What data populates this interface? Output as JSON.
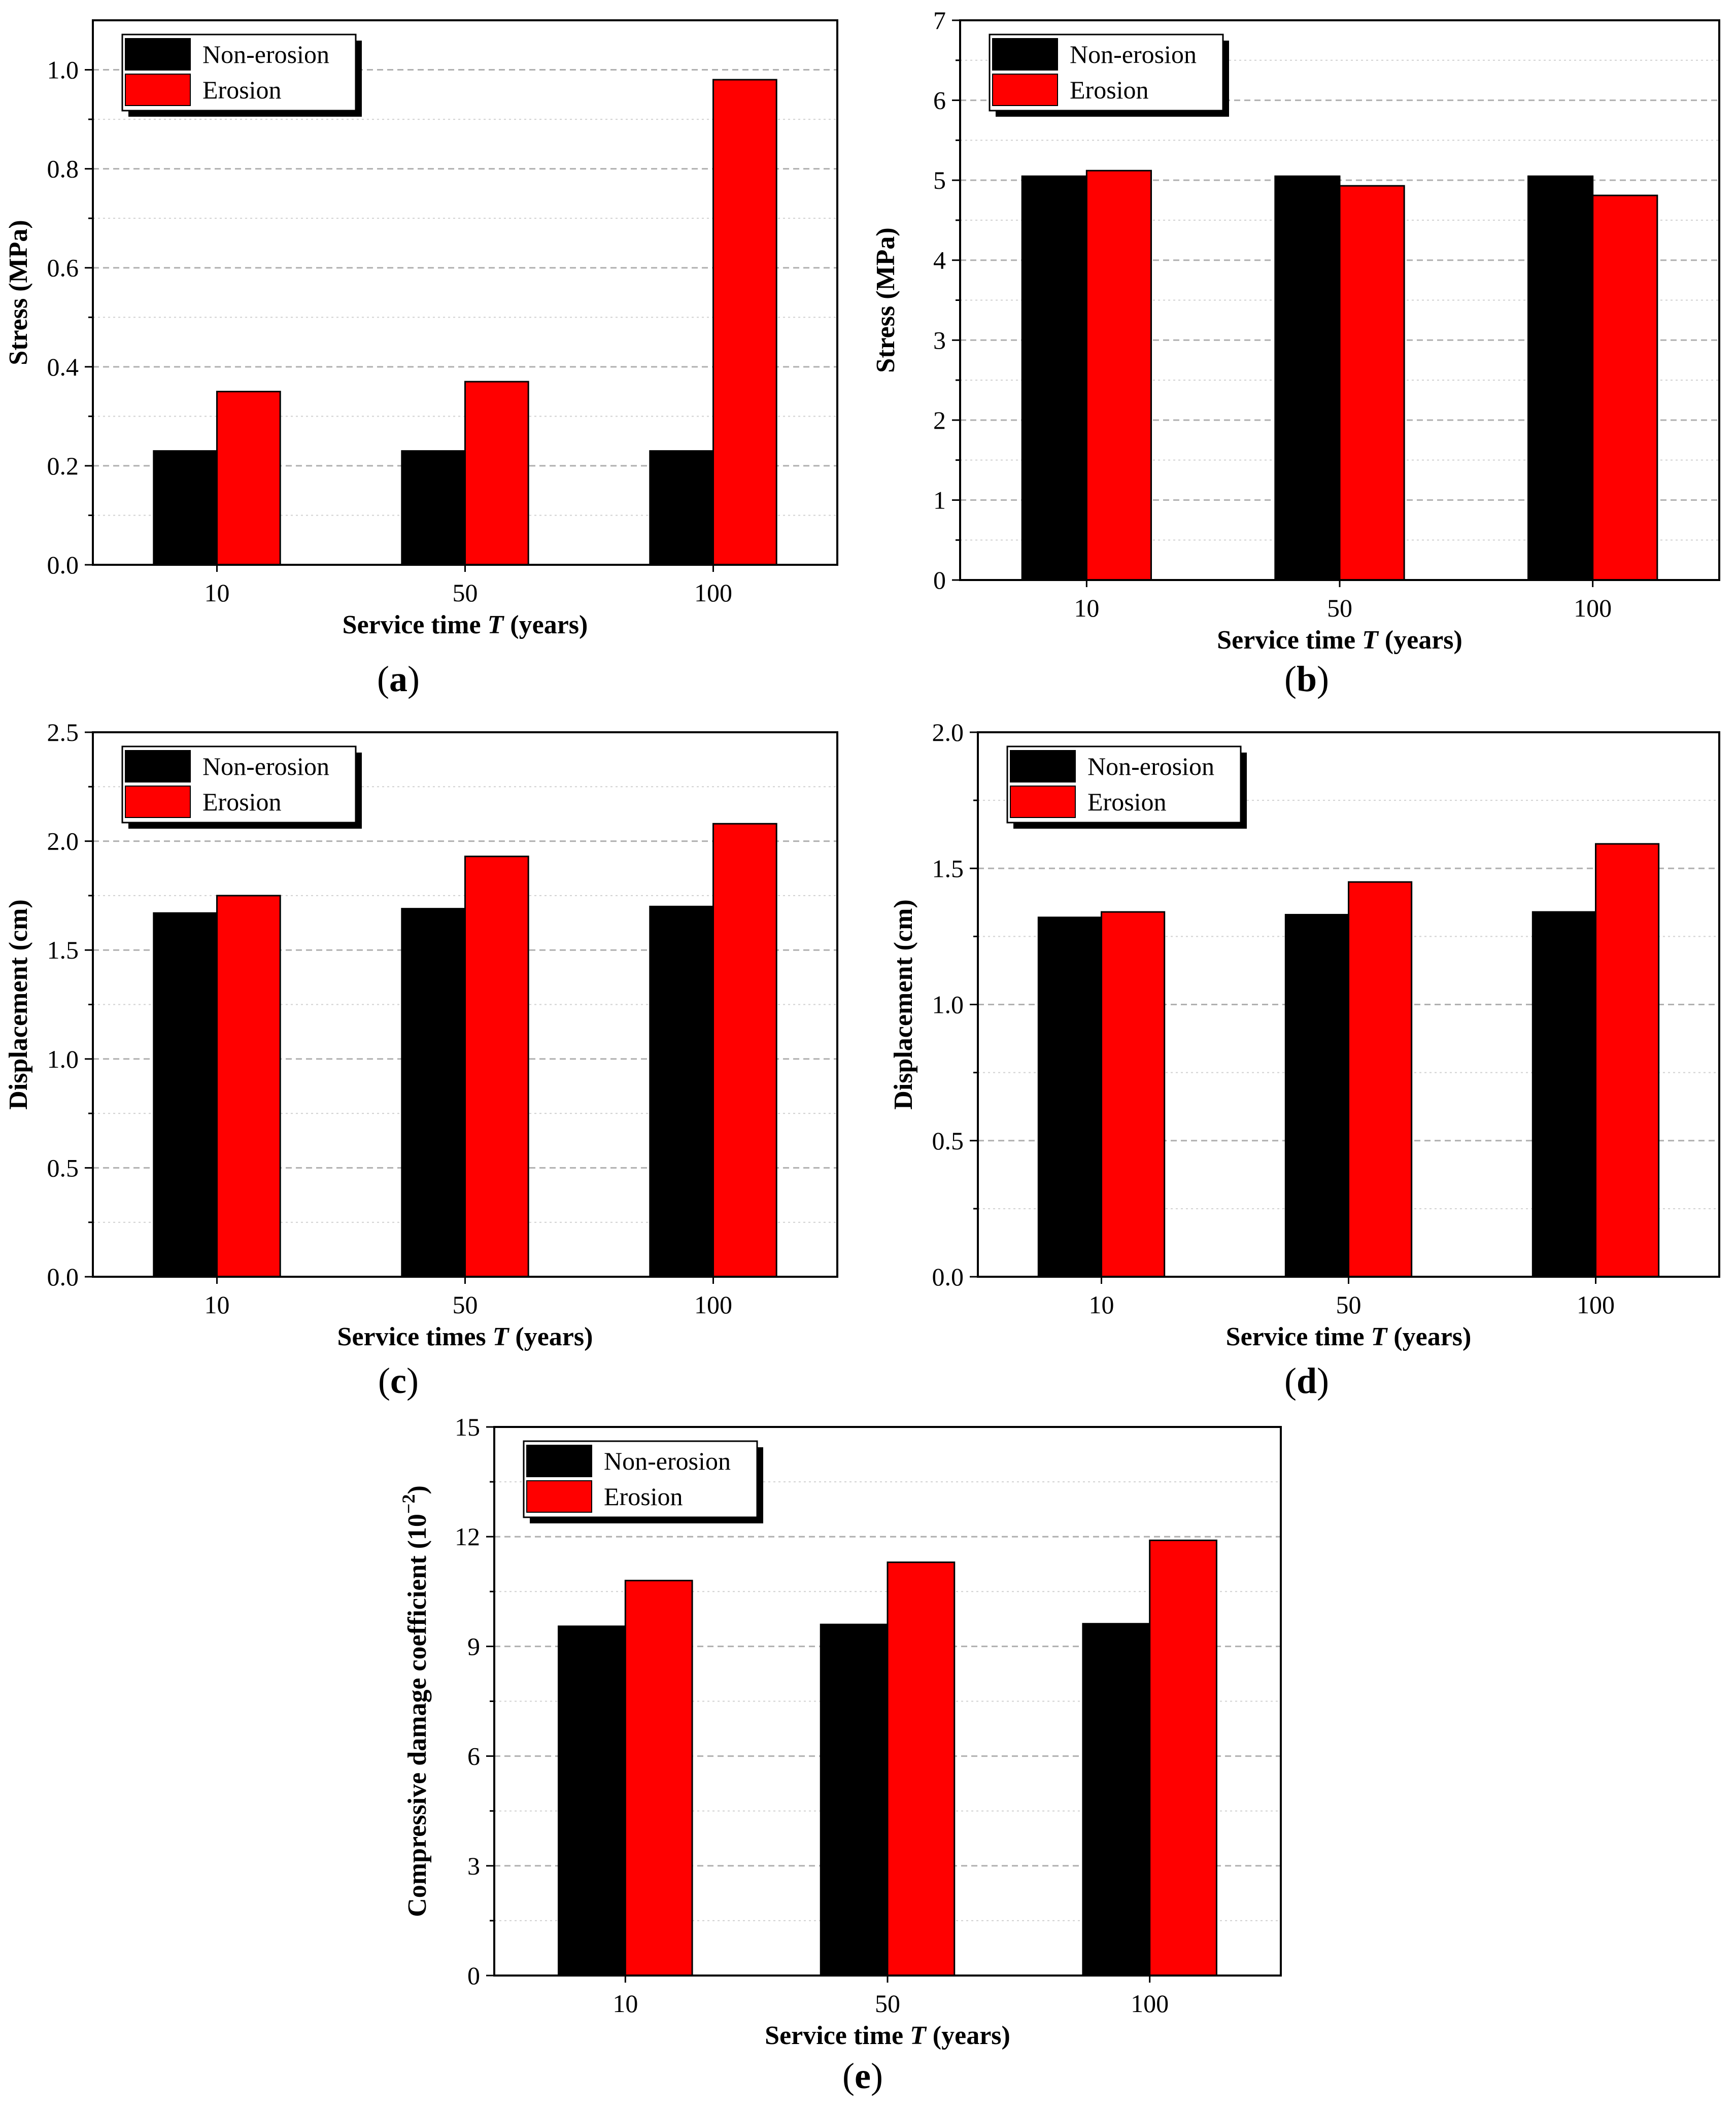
{
  "colors": {
    "non_erosion": "#000000",
    "erosion": "#ff0000",
    "grid": "#b0b0b0",
    "frame": "#000000"
  },
  "chart_data": [
    {
      "panel": "a",
      "type": "bar",
      "caption": "a",
      "categories": [
        "10",
        "50",
        "100"
      ],
      "series": [
        {
          "name": "Non-erosion",
          "values": [
            0.23,
            0.23,
            0.23
          ]
        },
        {
          "name": "Erosion",
          "values": [
            0.35,
            0.37,
            0.98
          ]
        }
      ],
      "xlabel": "Service time T (years)",
      "xlabel_parts": [
        "Service time ",
        "T",
        " (years)"
      ],
      "ylabel": "Stress (MPa)",
      "ylim": [
        0,
        1.1
      ],
      "yticks": [
        0,
        0.2,
        0.4,
        0.6,
        0.8,
        1.0
      ],
      "ytick_labels": [
        "0.0",
        "0.2",
        "0.4",
        "0.6",
        "0.8",
        "1.0"
      ],
      "legend": "top-left",
      "grid": true
    },
    {
      "panel": "b",
      "type": "bar",
      "caption": "b",
      "categories": [
        "10",
        "50",
        "100"
      ],
      "series": [
        {
          "name": "Non-erosion",
          "values": [
            5.05,
            5.05,
            5.05
          ]
        },
        {
          "name": "Erosion",
          "values": [
            5.12,
            4.93,
            4.81
          ]
        }
      ],
      "xlabel": "Service time T (years)",
      "xlabel_parts": [
        "Service time ",
        "T",
        " (years)"
      ],
      "ylabel": "Stress (MPa)",
      "ylim": [
        0,
        7
      ],
      "yticks": [
        0,
        1,
        2,
        3,
        4,
        5,
        6,
        7
      ],
      "ytick_labels": [
        "0",
        "1",
        "2",
        "3",
        "4",
        "5",
        "6",
        "7"
      ],
      "legend": "top-left",
      "grid": true
    },
    {
      "panel": "c",
      "type": "bar",
      "caption": "c",
      "categories": [
        "10",
        "50",
        "100"
      ],
      "series": [
        {
          "name": "Non-erosion",
          "values": [
            1.67,
            1.69,
            1.7
          ]
        },
        {
          "name": "Erosion",
          "values": [
            1.75,
            1.93,
            2.08
          ]
        }
      ],
      "xlabel": "Service times T (years)",
      "xlabel_parts": [
        "Service times ",
        "T",
        " (years)"
      ],
      "ylabel": "Displacement (cm)",
      "ylim": [
        0,
        2.5
      ],
      "yticks": [
        0,
        0.5,
        1.0,
        1.5,
        2.0,
        2.5
      ],
      "ytick_labels": [
        "0.0",
        "0.5",
        "1.0",
        "1.5",
        "2.0",
        "2.5"
      ],
      "legend": "top-left",
      "grid": true
    },
    {
      "panel": "d",
      "type": "bar",
      "caption": "d",
      "categories": [
        "10",
        "50",
        "100"
      ],
      "series": [
        {
          "name": "Non-erosion",
          "values": [
            1.32,
            1.33,
            1.34
          ]
        },
        {
          "name": "Erosion",
          "values": [
            1.34,
            1.45,
            1.59
          ]
        }
      ],
      "xlabel": "Service time T (years)",
      "xlabel_parts": [
        "Service time ",
        "T",
        " (years)"
      ],
      "ylabel": "Displacement (cm)",
      "ylim": [
        0,
        2.0
      ],
      "yticks": [
        0,
        0.5,
        1.0,
        1.5,
        2.0
      ],
      "ytick_labels": [
        "0.0",
        "0.5",
        "1.0",
        "1.5",
        "2.0"
      ],
      "legend": "top-left",
      "grid": true
    },
    {
      "panel": "e",
      "type": "bar",
      "caption": "e",
      "categories": [
        "10",
        "50",
        "100"
      ],
      "series": [
        {
          "name": "Non-erosion",
          "values": [
            9.55,
            9.6,
            9.62
          ]
        },
        {
          "name": "Erosion",
          "values": [
            10.8,
            11.3,
            11.9
          ]
        }
      ],
      "xlabel": "Service time T (years)",
      "xlabel_parts": [
        "Service time ",
        "T",
        " (years)"
      ],
      "ylabel": "Compressive damage coefficient (10−2)",
      "ylabel_main": "Compressive damage coefficient (10",
      "ylabel_sup": "−2",
      "ylabel_end": ")",
      "ylim": [
        0,
        15
      ],
      "yticks": [
        0,
        3,
        6,
        9,
        12,
        15
      ],
      "ytick_labels": [
        "0",
        "3",
        "6",
        "9",
        "12",
        "15"
      ],
      "legend": "top-left",
      "grid": true
    }
  ]
}
